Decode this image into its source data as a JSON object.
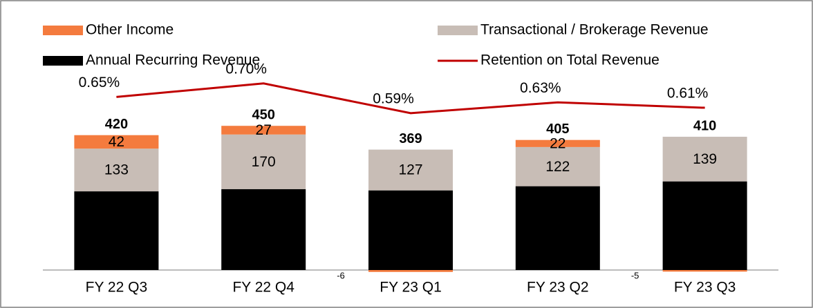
{
  "chart_data": {
    "type": "bar",
    "categories": [
      "FY 22 Q3",
      "FY 22 Q4",
      "FY 23 Q1",
      "FY 23 Q2",
      "FY 23 Q3"
    ],
    "series": [
      {
        "name": "Annual Recurring Revenue",
        "color": "#000000",
        "values": [
          245,
          252,
          248,
          261,
          276
        ]
      },
      {
        "name": "Transactional / Brokerage Revenue",
        "color": "#c8bdb6",
        "values": [
          133,
          170,
          127,
          122,
          139
        ]
      },
      {
        "name": "Other Income",
        "color": "#f47b3e",
        "values": [
          42,
          27,
          -6,
          22,
          -5
        ]
      },
      {
        "name": "Retention on Total Revenue",
        "color": "#c00000",
        "type": "line",
        "axis": "y2",
        "values": [
          0.65,
          0.7,
          0.59,
          0.63,
          0.61
        ],
        "value_labels": [
          "0.65%",
          "0.70%",
          "0.59%",
          "0.63%",
          "0.61%"
        ]
      }
    ],
    "totals": [
      420,
      450,
      369,
      405,
      410
    ],
    "ylim": [
      0,
      800
    ],
    "y2lim": [
      0.01,
      0.96
    ]
  }
}
